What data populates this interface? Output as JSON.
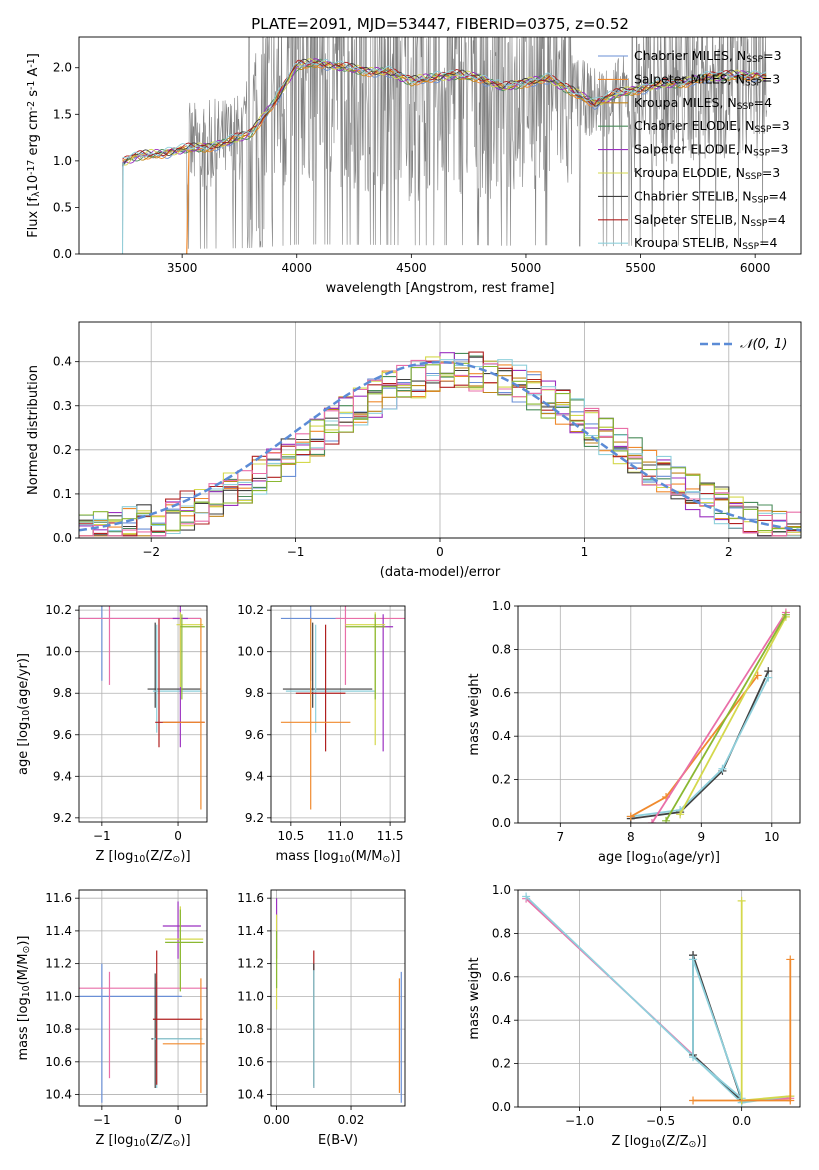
{
  "figure_title": "PLATE=2091, MJD=53447, FIBERID=0375, z=0.52",
  "colors": {
    "data": "#808080",
    "normal_curve": "#5b8bd6",
    "models": [
      "#6a8fd6",
      "#f08a2e",
      "#c0851a",
      "#4a8c5a",
      "#9b30c0",
      "#d4d84c",
      "#404040",
      "#b02020",
      "#8fd0dc"
    ],
    "extra": [
      "#e96fa8",
      "#8ab832"
    ]
  },
  "chart_data": [
    {
      "id": "spectrum",
      "type": "line",
      "title": "PLATE=2091, MJD=53447, FIBERID=0375, z=0.52",
      "xlabel": "wavelength [Angstrom, rest frame]",
      "ylabel": "Flux [f$_\\lambda$10$^{-17}$ erg cm$^{-2}$ s$^{-1}$ A$^{-1}$]",
      "xlim": [
        3050,
        6200
      ],
      "ylim": [
        0,
        2.33
      ],
      "xticks": [
        3500,
        4000,
        4500,
        5000,
        5500,
        6000
      ],
      "yticks": [
        0.0,
        0.5,
        1.0,
        1.5,
        2.0
      ],
      "xtick_labels": [
        "3500",
        "4000",
        "4500",
        "5000",
        "5500",
        "6000"
      ],
      "ytick_labels": [
        "0.0",
        "0.5",
        "1.0",
        "1.5",
        "2.0"
      ],
      "legend": "top-right",
      "legend_entries": [
        {
          "label": "Chabrier MILES, N",
          "sub": "SSP",
          "tail": "=3"
        },
        {
          "label": "Salpeter MILES, N",
          "sub": "SSP",
          "tail": "=3"
        },
        {
          "label": "Kroupa MILES, N",
          "sub": "SSP",
          "tail": "=4"
        },
        {
          "label": "Chabrier ELODIE, N",
          "sub": "SSP",
          "tail": "=3"
        },
        {
          "label": "Salpeter ELODIE, N",
          "sub": "SSP",
          "tail": "=3"
        },
        {
          "label": "Kroupa ELODIE, N",
          "sub": "SSP",
          "tail": "=3"
        },
        {
          "label": "Chabrier STELIB, N",
          "sub": "SSP",
          "tail": "=4"
        },
        {
          "label": "Salpeter STELIB, N",
          "sub": "SSP",
          "tail": "=4"
        },
        {
          "label": "Kroupa STELIB, N",
          "sub": "SSP",
          "tail": "=4"
        }
      ],
      "continuum": {
        "x": [
          3240,
          3300,
          3400,
          3500,
          3600,
          3700,
          3800,
          3900,
          4000,
          4100,
          4200,
          4300,
          4400,
          4500,
          4600,
          4700,
          4800,
          4900,
          5000,
          5100,
          5200,
          5300,
          5400,
          5500,
          5600,
          5700,
          5800,
          5900,
          6000,
          6050
        ],
        "y": [
          0.98,
          1.05,
          1.08,
          1.12,
          1.15,
          1.2,
          1.3,
          1.62,
          2.02,
          2.06,
          2.0,
          1.97,
          1.95,
          1.86,
          1.9,
          1.92,
          1.9,
          1.78,
          1.85,
          1.88,
          1.75,
          1.62,
          1.72,
          1.78,
          1.82,
          1.85,
          1.9,
          1.92,
          1.92,
          1.9
        ]
      }
    },
    {
      "id": "residuals",
      "type": "line",
      "xlabel": "(data-model)/error",
      "ylabel": "Normed distribution",
      "xlim": [
        -2.5,
        2.5
      ],
      "ylim": [
        0,
        0.49
      ],
      "xticks": [
        -2,
        -1,
        0,
        1,
        2
      ],
      "yticks": [
        0.0,
        0.1,
        0.2,
        0.3,
        0.4
      ],
      "xtick_labels": [
        "−2",
        "−1",
        "0",
        "1",
        "2"
      ],
      "ytick_labels": [
        "0.0",
        "0.1",
        "0.2",
        "0.3",
        "0.4"
      ],
      "legend": "top-right",
      "legend_label": "𝒩(0, 1)",
      "bin_width": 0.1
    },
    {
      "id": "z-age",
      "type": "scatter",
      "xlabel": "Z [log$_{10}$(Z/Z$_\\odot$)]",
      "ylabel": "age  [log$_{10}$(age/yr)]",
      "xlim": [
        -1.3,
        0.38
      ],
      "ylim": [
        9.18,
        10.22
      ],
      "xticks": [
        -1,
        0
      ],
      "yticks": [
        9.2,
        9.4,
        9.6,
        9.8,
        10.0,
        10.2
      ],
      "xtick_labels": [
        "−1",
        "0"
      ],
      "ytick_labels": [
        "9.2",
        "9.4",
        "9.6",
        "9.8",
        "10.0",
        "10.2"
      ]
    },
    {
      "id": "mass-age",
      "type": "scatter",
      "xlabel": "mass [log$_{10}$(M/M$_\\odot$)]",
      "xlim": [
        10.3,
        11.65
      ],
      "ylim": [
        9.18,
        10.22
      ],
      "xticks": [
        10.5,
        11.0,
        11.5
      ],
      "yticks": [
        9.2,
        9.4,
        9.6,
        9.8,
        10.0,
        10.2
      ],
      "xtick_labels": [
        "10.5",
        "11.0",
        "11.5"
      ],
      "ytick_labels": [
        "9.2",
        "9.4",
        "9.6",
        "9.8",
        "10.0",
        "10.2"
      ]
    },
    {
      "id": "age-weight",
      "type": "line",
      "xlabel": "age  [log$_{10}$(age/yr)]",
      "ylabel": "mass weight",
      "xlim": [
        6.4,
        10.4
      ],
      "ylim": [
        0,
        1.0
      ],
      "xticks": [
        7,
        8,
        9,
        10
      ],
      "yticks": [
        0.0,
        0.2,
        0.4,
        0.6,
        0.8,
        1.0
      ],
      "xtick_labels": [
        "7",
        "8",
        "9",
        "10"
      ],
      "ytick_labels": [
        "0.0",
        "0.2",
        "0.4",
        "0.6",
        "0.8",
        "1.0"
      ],
      "series": [
        {
          "x": [
            8.0,
            8.7,
            9.3,
            9.95
          ],
          "y": [
            0.02,
            0.05,
            0.24,
            0.7
          ]
        },
        {
          "x": [
            8.0,
            8.7,
            9.3,
            9.95
          ],
          "y": [
            0.03,
            0.06,
            0.25,
            0.67
          ]
        },
        {
          "x": [
            8.0,
            8.5,
            9.8
          ],
          "y": [
            0.03,
            0.12,
            0.68
          ]
        },
        {
          "x": [
            8.3,
            10.2
          ],
          "y": [
            0.0,
            0.97
          ]
        },
        {
          "x": [
            8.7,
            10.2
          ],
          "y": [
            0.04,
            0.95
          ]
        },
        {
          "x": [
            8.5,
            10.2
          ],
          "y": [
            0.01,
            0.96
          ]
        }
      ]
    },
    {
      "id": "z-mass",
      "type": "scatter",
      "xlabel": "Z [log$_{10}$(Z/Z$_\\odot$)]",
      "ylabel": "mass [log$_{10}$(M/M$_\\odot$)]",
      "xlim": [
        -1.3,
        0.38
      ],
      "ylim": [
        10.33,
        11.65
      ],
      "xticks": [
        -1,
        0
      ],
      "yticks": [
        10.4,
        10.6,
        10.8,
        11.0,
        11.2,
        11.4,
        11.6
      ],
      "xtick_labels": [
        "−1",
        "0"
      ],
      "ytick_labels": [
        "10.4",
        "10.6",
        "10.8",
        "11.0",
        "11.2",
        "11.4",
        "11.6"
      ]
    },
    {
      "id": "ebv-mass",
      "type": "scatter",
      "xlabel": "E(B-V)",
      "xlim": [
        -0.0015,
        0.0345
      ],
      "ylim": [
        10.33,
        11.65
      ],
      "xticks": [
        0.0,
        0.02
      ],
      "yticks": [
        10.4,
        10.6,
        10.8,
        11.0,
        11.2,
        11.4,
        11.6
      ],
      "xtick_labels": [
        "0.00",
        "0.02"
      ],
      "ytick_labels": [
        "10.4",
        "10.6",
        "10.8",
        "11.0",
        "11.2",
        "11.4",
        "11.6"
      ]
    },
    {
      "id": "z-weight",
      "type": "line",
      "xlabel": "Z [log$_{10}$(Z/Z$_\\odot$)]",
      "ylabel": "mass weight",
      "xlim": [
        -1.38,
        0.36
      ],
      "ylim": [
        0,
        1.0
      ],
      "xticks": [
        -1.0,
        -0.5,
        0.0
      ],
      "yticks": [
        0.0,
        0.2,
        0.4,
        0.6,
        0.8,
        1.0
      ],
      "xtick_labels": [
        "−1.0",
        "−0.5",
        "0.0"
      ],
      "ytick_labels": [
        "0.0",
        "0.2",
        "0.4",
        "0.6",
        "0.8",
        "1.0"
      ],
      "series": [
        {
          "x": [
            -1.33,
            0.0,
            0.3
          ],
          "y": [
            0.96,
            0.03,
            0.04
          ]
        },
        {
          "x": [
            -1.33,
            0.0,
            0.3
          ],
          "y": [
            0.97,
            0.02,
            0.05
          ]
        },
        {
          "x": [
            -0.3,
            -0.3,
            0.0,
            -0.3
          ],
          "y": [
            0.7,
            0.24,
            0.03,
            0.7
          ]
        },
        {
          "x": [
            -0.3,
            -0.3,
            0.0,
            -0.3
          ],
          "y": [
            0.68,
            0.23,
            0.04,
            0.68
          ]
        },
        {
          "x": [
            0.0,
            0.0,
            0.3
          ],
          "y": [
            0.95,
            0.03,
            0.05
          ]
        },
        {
          "x": [
            0.3,
            0.3,
            -0.3
          ],
          "y": [
            0.68,
            0.03,
            0.03
          ]
        }
      ]
    }
  ]
}
